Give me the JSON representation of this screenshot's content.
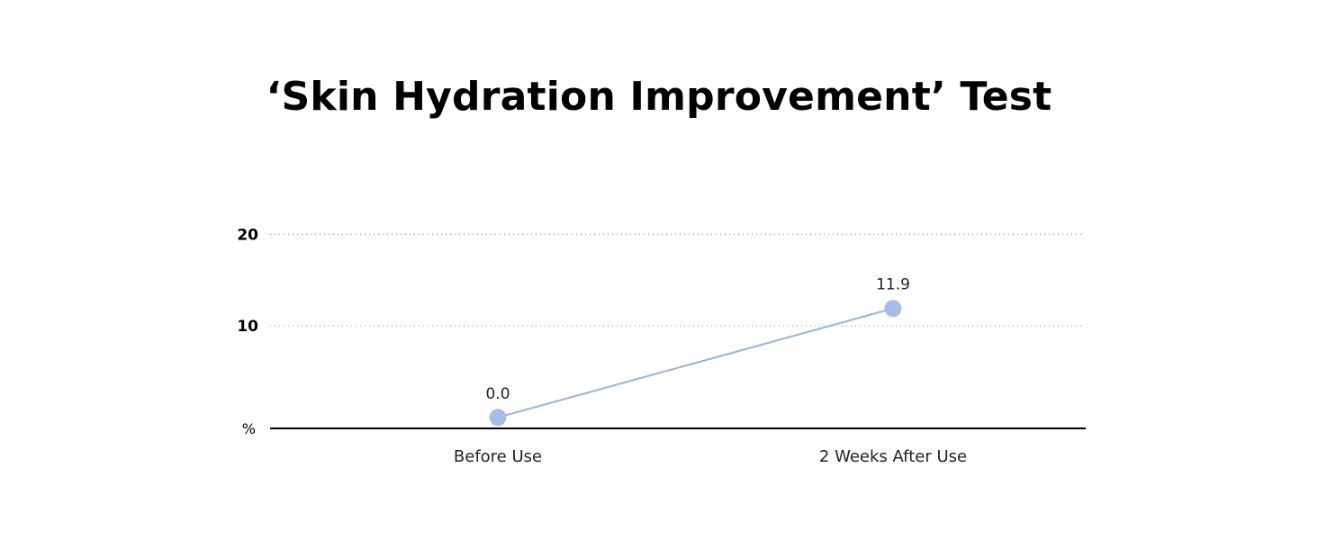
{
  "chart_data": {
    "type": "line",
    "title": "‘Skin Hydration Improvement’ Test",
    "categories": [
      "Before Use",
      "2 Weeks After Use"
    ],
    "series": [
      {
        "values": [
          0.0,
          11.9
        ],
        "labels": [
          "0.0",
          "11.9"
        ]
      }
    ],
    "ylabel": "%",
    "yticks": [
      "10",
      "20"
    ],
    "ylim": [
      -1.2,
      22
    ],
    "grid": true,
    "colors": {
      "line": "#94b3dc",
      "marker": "#a5bde7",
      "grid": "#9a9a9a",
      "axis": "#000000"
    }
  }
}
